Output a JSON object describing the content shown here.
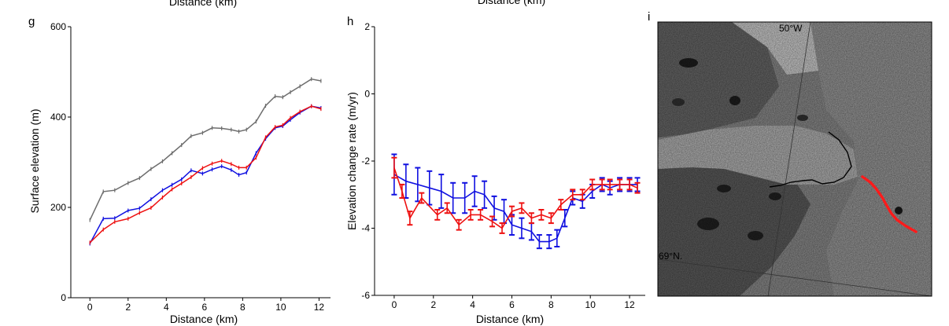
{
  "top_labels": {
    "g": "Distance (km)",
    "h": "Distance (km)"
  },
  "chart_data": [
    {
      "panel": "g",
      "type": "line",
      "xlabel": "Distance (km)",
      "ylabel": "Surface elevation (m)",
      "xlim": [
        -1,
        12.6
      ],
      "ylim": [
        0,
        600
      ],
      "xticks": [
        0,
        2,
        4,
        6,
        8,
        10,
        12
      ],
      "yticks": [
        0,
        200,
        400,
        600
      ],
      "grid": false,
      "series": [
        {
          "color": "#6d6d6d",
          "x": [
            0,
            0.7,
            1.3,
            2.0,
            2.6,
            3.2,
            3.8,
            4.3,
            4.8,
            5.3,
            5.9,
            6.4,
            6.9,
            7.4,
            7.8,
            8.2,
            8.7,
            9.2,
            9.7,
            10.1,
            10.5,
            11.0,
            11.6,
            12.1
          ],
          "y": [
            172,
            235,
            238,
            254,
            265,
            285,
            302,
            320,
            338,
            358,
            365,
            376,
            375,
            372,
            368,
            372,
            390,
            425,
            446,
            444,
            455,
            468,
            484,
            480
          ]
        },
        {
          "color": "#1010e0",
          "x": [
            0,
            0.7,
            1.3,
            2.0,
            2.6,
            3.2,
            3.8,
            4.3,
            4.8,
            5.3,
            5.9,
            6.4,
            6.9,
            7.4,
            7.8,
            8.2,
            8.7,
            9.2,
            9.7,
            10.1,
            10.5,
            11.0,
            11.6,
            12.1
          ],
          "y": [
            120,
            175,
            176,
            193,
            198,
            218,
            238,
            250,
            262,
            282,
            275,
            284,
            291,
            283,
            272,
            277,
            320,
            352,
            376,
            380,
            394,
            410,
            424,
            420
          ]
        },
        {
          "color": "#ee1111",
          "x": [
            0,
            0.7,
            1.3,
            2.0,
            2.6,
            3.2,
            3.8,
            4.3,
            4.8,
            5.3,
            5.9,
            6.4,
            6.9,
            7.4,
            7.8,
            8.2,
            8.7,
            9.2,
            9.7,
            10.1,
            10.5,
            11.0,
            11.6,
            12.1
          ],
          "y": [
            122,
            151,
            168,
            175,
            188,
            199,
            222,
            240,
            253,
            267,
            287,
            297,
            303,
            296,
            288,
            288,
            310,
            355,
            378,
            382,
            398,
            412,
            424,
            418
          ]
        }
      ]
    },
    {
      "panel": "h",
      "type": "line",
      "xlabel": "Distance (km)",
      "ylabel": "Elevation change rate (m/yr)",
      "xlim": [
        -1,
        12.8
      ],
      "ylim": [
        -6,
        2
      ],
      "xticks": [
        0,
        2,
        4,
        6,
        8,
        10,
        12
      ],
      "yticks": [
        -6,
        -4,
        -2,
        0,
        2
      ],
      "grid": false,
      "series": [
        {
          "color": "#1010e0",
          "x": [
            0,
            0.6,
            1.2,
            1.8,
            2.4,
            3.0,
            3.6,
            4.1,
            4.6,
            5.1,
            5.6,
            6.0,
            6.5,
            7.0,
            7.4,
            7.9,
            8.3,
            8.7,
            9.1,
            9.6,
            10.1,
            10.6,
            11.0,
            11.5,
            12.0,
            12.4
          ],
          "y": [
            -2.4,
            -2.6,
            -2.7,
            -2.8,
            -2.9,
            -3.1,
            -3.1,
            -2.9,
            -3.0,
            -3.4,
            -3.5,
            -3.9,
            -4.0,
            -4.1,
            -4.4,
            -4.4,
            -4.3,
            -3.7,
            -3.1,
            -3.2,
            -2.9,
            -2.7,
            -2.8,
            -2.7,
            -2.7,
            -2.7
          ],
          "err": [
            0.6,
            0.5,
            0.5,
            0.5,
            0.5,
            0.45,
            0.45,
            0.45,
            0.4,
            0.35,
            0.35,
            0.3,
            0.3,
            0.25,
            0.2,
            0.2,
            0.25,
            0.25,
            0.2,
            0.2,
            0.2,
            0.2,
            0.2,
            0.2,
            0.2,
            0.2
          ]
        },
        {
          "color": "#ee1111",
          "x": [
            0,
            0.4,
            0.8,
            1.4,
            2.2,
            2.7,
            3.3,
            3.9,
            4.4,
            5.0,
            5.5,
            6.0,
            6.5,
            7.0,
            7.5,
            8.0,
            8.5,
            9.1,
            9.6,
            10.1,
            10.6,
            11.0,
            11.5,
            12.0,
            12.4
          ],
          "y": [
            -2.2,
            -2.9,
            -3.7,
            -3.1,
            -3.6,
            -3.4,
            -3.9,
            -3.6,
            -3.6,
            -3.8,
            -4.0,
            -3.5,
            -3.4,
            -3.7,
            -3.6,
            -3.7,
            -3.3,
            -3.0,
            -3.0,
            -2.7,
            -2.7,
            -2.7,
            -2.7,
            -2.7,
            -2.8
          ],
          "err": [
            0.3,
            0.2,
            0.2,
            0.15,
            0.15,
            0.15,
            0.15,
            0.15,
            0.15,
            0.15,
            0.15,
            0.15,
            0.15,
            0.15,
            0.15,
            0.15,
            0.15,
            0.15,
            0.15,
            0.15,
            0.15,
            0.15,
            0.15,
            0.15,
            0.15
          ]
        }
      ]
    }
  ],
  "map": {
    "panel": "i",
    "meridian_label": "50°W",
    "parallel_label": "69°N."
  }
}
